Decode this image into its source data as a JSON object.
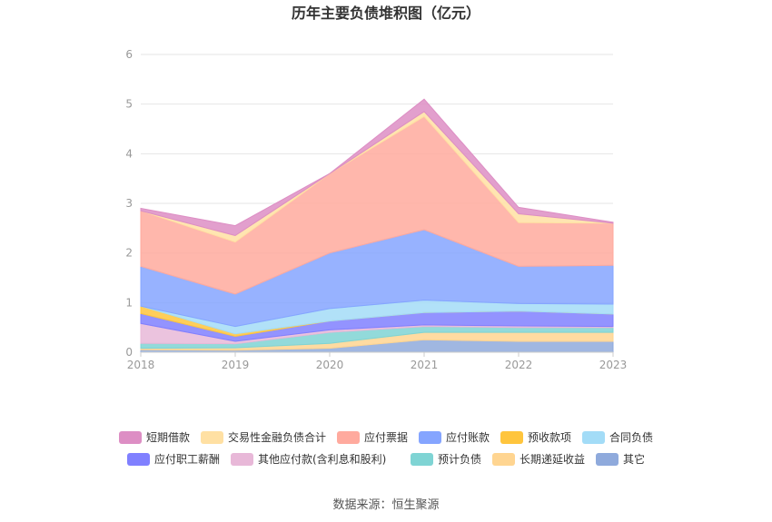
{
  "chart_data": {
    "type": "area",
    "stacked": true,
    "title": "历年主要负债堆积图（亿元）",
    "xlabel": "",
    "ylabel": "",
    "x": [
      "2018",
      "2019",
      "2020",
      "2021",
      "2022",
      "2023"
    ],
    "yticks": [
      "0",
      "1",
      "2",
      "3",
      "4",
      "5",
      "6"
    ],
    "ylim": [
      0,
      6
    ],
    "grid": true,
    "legend": "bottom",
    "source": "数据来源：恒生聚源",
    "series": [
      {
        "name": "其它",
        "color": "#8faadc",
        "values": [
          0.05,
          0.04,
          0.08,
          0.25,
          0.22,
          0.22
        ]
      },
      {
        "name": "长期递延收益",
        "color": "#ffd591",
        "values": [
          0.03,
          0.05,
          0.1,
          0.15,
          0.18,
          0.18
        ]
      },
      {
        "name": "预计负债",
        "color": "#7fd4d4",
        "values": [
          0.1,
          0.08,
          0.22,
          0.12,
          0.1,
          0.1
        ]
      },
      {
        "name": "其他应付款(含利息和股利)",
        "color": "#e8b8d8",
        "values": [
          0.4,
          0.05,
          0.05,
          0.03,
          0.03,
          0.02
        ]
      },
      {
        "name": "应付职工薪酬",
        "color": "#8080ff",
        "values": [
          0.2,
          0.1,
          0.18,
          0.25,
          0.3,
          0.25
        ]
      },
      {
        "name": "预收款项",
        "color": "#ffc53d",
        "values": [
          0.15,
          0.05,
          0.0,
          0.0,
          0.0,
          0.0
        ]
      },
      {
        "name": "合同负债",
        "color": "#a3dcf7",
        "values": [
          0.0,
          0.15,
          0.25,
          0.25,
          0.15,
          0.2
        ]
      },
      {
        "name": "应付账款",
        "color": "#85a5ff",
        "values": [
          0.8,
          0.65,
          1.12,
          1.42,
          0.75,
          0.78
        ]
      },
      {
        "name": "应付票据",
        "color": "#ffaa9e",
        "values": [
          1.12,
          1.05,
          1.6,
          2.28,
          0.88,
          0.85
        ]
      },
      {
        "name": "交易性金融负债合计",
        "color": "#ffe0a3",
        "values": [
          0.0,
          0.13,
          0.0,
          0.1,
          0.18,
          0.0
        ]
      },
      {
        "name": "短期借款",
        "color": "#dd8ec4",
        "values": [
          0.05,
          0.2,
          0.0,
          0.25,
          0.13,
          0.02
        ]
      }
    ],
    "legend_order": [
      "短期借款",
      "交易性金融负债合计",
      "应付票据",
      "应付账款",
      "预收款项",
      "合同负债",
      "应付职工薪酬",
      "其他应付款(含利息和股利)",
      "预计负债",
      "长期递延收益",
      "其它"
    ]
  }
}
